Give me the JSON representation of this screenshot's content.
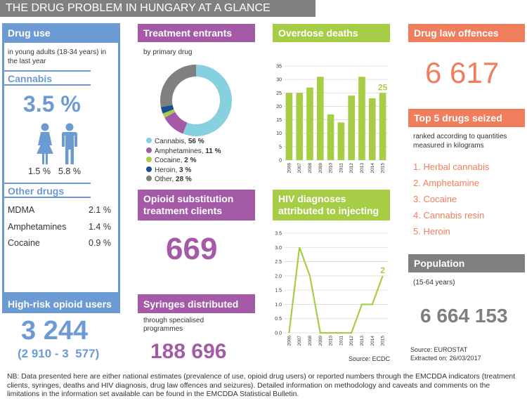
{
  "title": "THE DRUG PROBLEM IN HUNGARY AT A GLANCE",
  "drug_use": {
    "header": "Drug use",
    "subtitle": "in young adults (18-34 years) in the last year",
    "cannabis_label": "Cannabis",
    "cannabis_value": "3.5 %",
    "female_value": "1.5 %",
    "male_value": "5.8 %",
    "other_label": "Other drugs",
    "other": [
      {
        "name": "MDMA",
        "value": "2.1 %"
      },
      {
        "name": "Amphetamines",
        "value": "1.4 %"
      },
      {
        "name": "Cocaine",
        "value": "0.9 %"
      }
    ]
  },
  "high_risk": {
    "header": "High-risk opioid users",
    "value": "3 244",
    "range": "(2 910 - 3  577)"
  },
  "treatment": {
    "header": "Treatment entrants",
    "subtitle": "by primary drug",
    "legend": [
      {
        "name": "Cannabis, ",
        "pct": "56 %",
        "value": 56,
        "color": "#86d0df"
      },
      {
        "name": "Amphetamines, ",
        "pct": "11 %",
        "value": 11,
        "color": "#a45aa7"
      },
      {
        "name": "Cocaine, ",
        "pct": "2 %",
        "value": 2,
        "color": "#a6cd45"
      },
      {
        "name": "Heroin, ",
        "pct": "3 %",
        "value": 3,
        "color": "#1b4f93"
      },
      {
        "name": "Other, ",
        "pct": "28 %",
        "value": 28,
        "color": "#808080"
      }
    ]
  },
  "ost": {
    "header": "Opioid substitution treatment clients",
    "value": "669"
  },
  "syringes": {
    "header": "Syringes distributed",
    "subtitle": "through specialised programmes",
    "value": "188 696"
  },
  "overdose": {
    "header": "Overdose deaths",
    "last_label": "25"
  },
  "hiv": {
    "header": "HIV diagnoses attributed to injecting",
    "last_label": "2",
    "source": "Source: ECDC"
  },
  "law": {
    "header": "Drug law offences",
    "value": "6 617"
  },
  "seized": {
    "header": "Top 5 drugs seized",
    "subtitle": "ranked according to quantities measured in kilograms",
    "items": [
      "1. Herbal cannabis",
      "2. Amphetamine",
      "3. Cocaine",
      "4. Cannabis resin",
      "5. Heroin"
    ]
  },
  "population": {
    "header": "Population",
    "subtitle": "(15-64 years)",
    "value": "6 664 153",
    "source": "Source: EUROSTAT",
    "extracted": "Extracted on: 26/03/2017"
  },
  "footnote": "NB: Data presented here are either national estimates (prevalence of use, opioid drug users) or reported numbers through the EMCDDA indicators (treatment clients, syringes, deaths and HIV diagnosis, drug law offences and seizures). Detailed information on methodology and caveats and comments on the limitations in the information set available can be found in the EMCDDA Statistical Bulletin.",
  "chart_data": [
    {
      "type": "bar",
      "categories": [
        "2006",
        "2007",
        "2008",
        "2009",
        "2010",
        "2011",
        "2012",
        "2013",
        "2014",
        "2015"
      ],
      "values": [
        25,
        25,
        27,
        31,
        17,
        14,
        24,
        31,
        23,
        25
      ],
      "ylim": [
        0,
        35
      ],
      "yticks": [
        "0",
        "5",
        "10",
        "15",
        "20",
        "25",
        "30",
        "35"
      ],
      "grid": true,
      "color": "#a6cd45"
    },
    {
      "type": "line",
      "x": [
        "2006",
        "2007",
        "2008",
        "2009",
        "2010",
        "2011",
        "2012",
        "2013",
        "2014",
        "2015"
      ],
      "values": [
        0,
        3,
        2,
        0,
        0,
        0,
        0,
        1,
        1,
        2
      ],
      "ylim": [
        0,
        3.5
      ],
      "yticks": [
        "0.0",
        "0.5",
        "1.0",
        "1.5",
        "2.0",
        "2.5",
        "3.0",
        "3.5"
      ],
      "grid": true,
      "color": "#a6cd45"
    }
  ]
}
